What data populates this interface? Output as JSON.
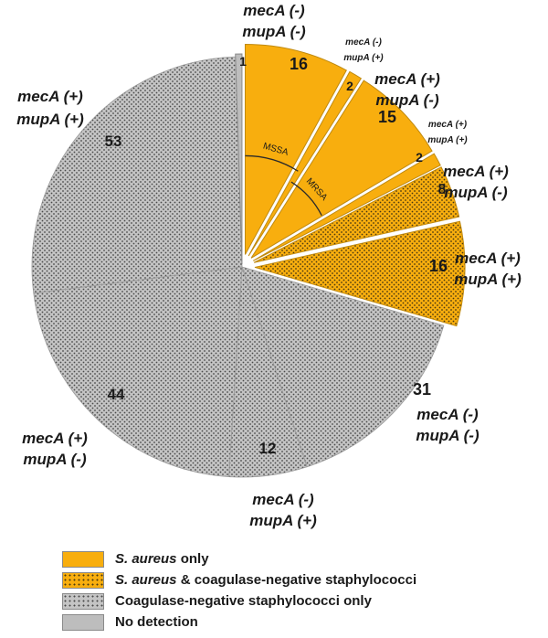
{
  "chart_data": {
    "type": "pie",
    "colors": {
      "s_aureus_only": "#F8AE0E",
      "s_aureus_and_cons": "#F8AE0E",
      "cons_only": "#C2C2C2",
      "no_detection": "#BDBDBD",
      "dots": "#3a3a3a"
    },
    "slices": [
      {
        "group": "s_aureus_only",
        "value": 16,
        "mecA": "mecA (-)",
        "mupA": "mupA (-)"
      },
      {
        "group": "s_aureus_only",
        "value": 2,
        "mecA": "mecA (-)",
        "mupA": "mupA (+)"
      },
      {
        "group": "s_aureus_only",
        "value": 15,
        "mecA": "mecA (+)",
        "mupA": "mupA (-)"
      },
      {
        "group": "s_aureus_only",
        "value": 2,
        "mecA": "mecA (+)",
        "mupA": "mupA (+)"
      },
      {
        "group": "s_aureus_and_cons",
        "value": 8,
        "mecA": "mecA (+)",
        "mupA": "mupA (-)"
      },
      {
        "group": "s_aureus_and_cons",
        "value": 16,
        "mecA": "mecA (+)",
        "mupA": "mupA (+)"
      },
      {
        "group": "cons_only",
        "value": 31,
        "mecA": "mecA (-)",
        "mupA": "mupA (-)"
      },
      {
        "group": "cons_only",
        "value": 12,
        "mecA": "mecA (-)",
        "mupA": "mupA (+)"
      },
      {
        "group": "cons_only",
        "value": 44,
        "mecA": "mecA (+)",
        "mupA": "mupA (-)"
      },
      {
        "group": "cons_only",
        "value": 53,
        "mecA": "mecA (+)",
        "mupA": "mupA (+)"
      },
      {
        "group": "no_detection",
        "value": 1,
        "mecA": "",
        "mupA": ""
      }
    ],
    "arc_annotations": [
      "MSSA",
      "MRSA"
    ],
    "legend": [
      {
        "group": "s_aureus_only",
        "italic": "S. aureus",
        "rest": " only"
      },
      {
        "group": "s_aureus_and_cons",
        "italic": "S. aureus",
        "rest": " & coagulase-negative staphylococci"
      },
      {
        "group": "cons_only",
        "italic": "",
        "rest": "Coagulase-negative staphylococci only"
      },
      {
        "group": "no_detection",
        "italic": "",
        "rest": "No detection"
      }
    ]
  }
}
